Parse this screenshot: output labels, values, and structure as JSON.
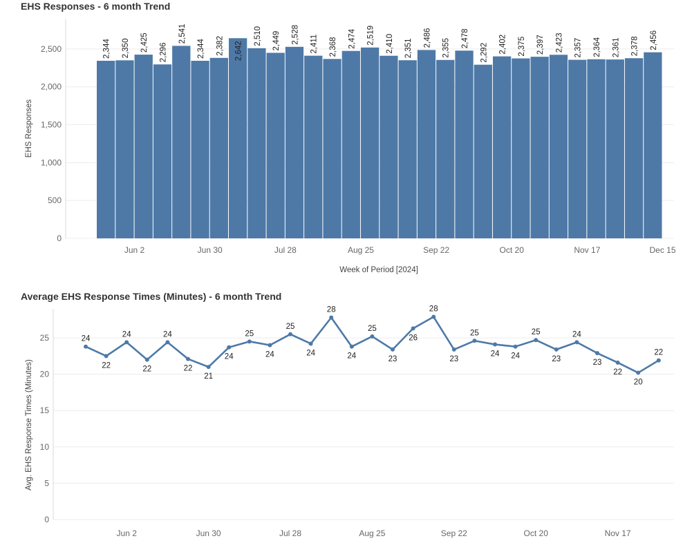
{
  "chart_data": [
    {
      "type": "bar",
      "title": "EHS Responses - 6 month Trend",
      "xlabel": "Week of Period [2024]",
      "ylabel": "EHS Responses",
      "ylim": [
        0,
        2900
      ],
      "yticks": [
        0,
        500,
        1000,
        1500,
        2000,
        2500
      ],
      "ytick_labels": [
        "0",
        "500",
        "1,000",
        "1,500",
        "2,000",
        "2,500"
      ],
      "xtick_labels": [
        "Jun 2",
        "Jun 30",
        "Jul 28",
        "Aug 25",
        "Sep 22",
        "Oct 20",
        "Nov 17",
        "Dec 15"
      ],
      "color": "#4e79a7",
      "values": [
        2344,
        2350,
        2425,
        2296,
        2541,
        2344,
        2382,
        2642,
        2510,
        2449,
        2528,
        2411,
        2368,
        2474,
        2519,
        2410,
        2351,
        2486,
        2355,
        2478,
        2292,
        2402,
        2375,
        2397,
        2423,
        2357,
        2364,
        2361,
        2378,
        2456
      ],
      "value_labels": [
        "2,344",
        "2,350",
        "2,425",
        "2,296",
        "2,541",
        "2,344",
        "2,382",
        "2,642",
        "2,510",
        "2,449",
        "2,528",
        "2,411",
        "2,368",
        "2,474",
        "2,519",
        "2,410",
        "2,351",
        "2,486",
        "2,355",
        "2,478",
        "2,292",
        "2,402",
        "2,375",
        "2,397",
        "2,423",
        "2,357",
        "2,364",
        "2,361",
        "2,378",
        "2,456"
      ]
    },
    {
      "type": "line",
      "title": "Average EHS Response Times (Minutes) - 6 month Trend",
      "xlabel": "",
      "ylabel": "Avg. EHS Response Times (Minutes)",
      "ylim": [
        0,
        29
      ],
      "yticks": [
        0,
        5,
        10,
        15,
        20,
        25
      ],
      "ytick_labels": [
        "0",
        "5",
        "10",
        "15",
        "20",
        "25"
      ],
      "xtick_labels": [
        "Jun 2",
        "Jun 30",
        "Jul 28",
        "Aug 25",
        "Sep 22",
        "Oct 20",
        "Nov 17"
      ],
      "color": "#4e79a7",
      "values": [
        23.8,
        22.5,
        24.4,
        22.0,
        24.4,
        22.1,
        21.0,
        23.7,
        24.5,
        24.0,
        25.5,
        24.2,
        27.8,
        23.8,
        25.2,
        23.4,
        26.3,
        27.9,
        23.4,
        24.6,
        24.1,
        23.8,
        24.7,
        23.4,
        24.4,
        22.9,
        21.6,
        20.2,
        21.9
      ],
      "value_labels": [
        "24",
        "22",
        "24",
        "22",
        "24",
        "22",
        "21",
        "24",
        "25",
        "24",
        "25",
        "24",
        "28",
        "24",
        "25",
        "23",
        "26",
        "28",
        "23",
        "25",
        "24",
        "24",
        "25",
        "23",
        "24",
        "23",
        "22",
        "20",
        "22"
      ]
    }
  ]
}
